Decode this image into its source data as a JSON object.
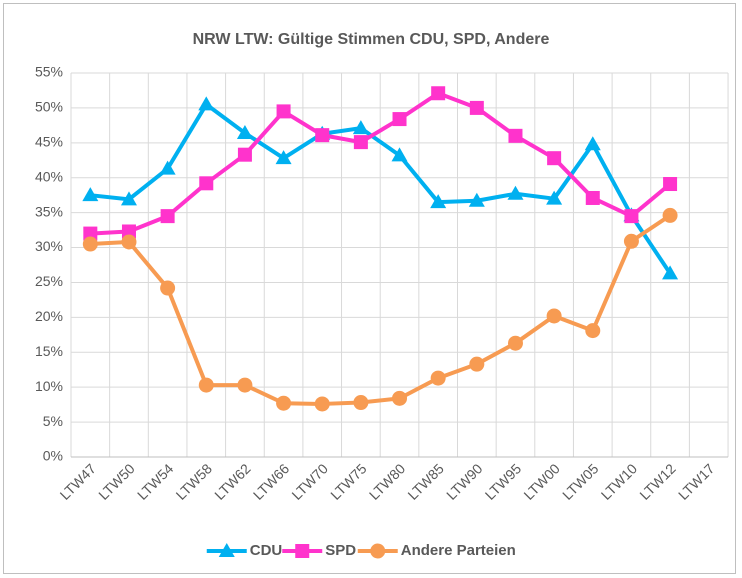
{
  "chart_data": {
    "type": "line",
    "title": "NRW LTW: Gültige Stimmen CDU, SPD, Andere",
    "categories": [
      "LTW47",
      "LTW50",
      "LTW54",
      "LTW58",
      "LTW62",
      "LTW66",
      "LTW70",
      "LTW75",
      "LTW80",
      "LTW85",
      "LTW90",
      "LTW95",
      "LTW00",
      "LTW05",
      "LTW10",
      "LTW12",
      "LTW17"
    ],
    "series": [
      {
        "name": "CDU",
        "color": "#00b0f0",
        "marker": "triangle",
        "values": [
          37.5,
          36.9,
          41.3,
          50.5,
          46.4,
          42.8,
          46.3,
          47.1,
          43.2,
          36.5,
          36.7,
          37.7,
          37.0,
          44.8,
          34.6,
          26.3,
          null
        ]
      },
      {
        "name": "SPD",
        "color": "#ff33cc",
        "marker": "square",
        "values": [
          32.0,
          32.3,
          34.5,
          39.2,
          43.3,
          49.5,
          46.1,
          45.1,
          48.4,
          52.1,
          50.0,
          46.0,
          42.8,
          37.1,
          34.5,
          39.1,
          null
        ]
      },
      {
        "name": "Andere Parteien",
        "color": "#f79b52",
        "marker": "circle",
        "values": [
          30.5,
          30.8,
          24.2,
          10.3,
          10.3,
          7.7,
          7.6,
          7.8,
          8.4,
          11.3,
          13.3,
          16.3,
          20.2,
          18.1,
          30.9,
          34.6,
          null
        ]
      }
    ],
    "ylim": [
      0,
      55
    ],
    "yticks": [
      {
        "value": 0,
        "label": "0%"
      },
      {
        "value": 5,
        "label": "5%"
      },
      {
        "value": 10,
        "label": "10%"
      },
      {
        "value": 15,
        "label": "15%"
      },
      {
        "value": 20,
        "label": "20%"
      },
      {
        "value": 25,
        "label": "25%"
      },
      {
        "value": 30,
        "label": "30%"
      },
      {
        "value": 35,
        "label": "35%"
      },
      {
        "value": 40,
        "label": "40%"
      },
      {
        "value": 45,
        "label": "45%"
      },
      {
        "value": 50,
        "label": "50%"
      },
      {
        "value": 55,
        "label": "55%"
      }
    ],
    "grid": true,
    "legend": "bottom"
  }
}
